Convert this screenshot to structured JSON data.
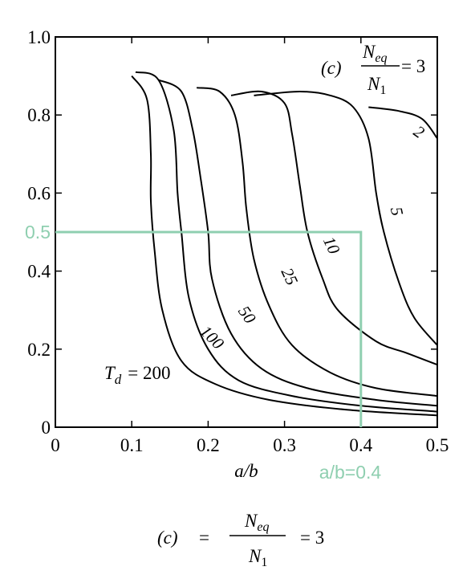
{
  "chart_data": {
    "type": "line",
    "title": "",
    "xlabel": "a/b",
    "ylabel": "",
    "xlim": [
      0,
      0.5
    ],
    "ylim": [
      0,
      1.0
    ],
    "x_ticks": [
      "0",
      "0.1",
      "0.2",
      "0.3",
      "0.4",
      "0.5"
    ],
    "y_ticks": [
      "0",
      "0.2",
      "0.4",
      "0.5",
      "0.6",
      "0.8",
      "1.0"
    ],
    "grid": false,
    "legend": "none",
    "inset_label": {
      "case": "(c)",
      "numerator": "N",
      "numerator_sub": "eq",
      "denominator": "N",
      "denominator_sub": "1",
      "value": "= 3"
    },
    "caption": {
      "case": "(c)",
      "eq1": "=",
      "numerator": "N",
      "numerator_sub": "eq",
      "denominator": "N",
      "denominator_sub": "1",
      "eq2": "= 3"
    },
    "series": [
      {
        "name": "2",
        "label": "2",
        "points": [
          [
            0.41,
            0.82
          ],
          [
            0.45,
            0.81
          ],
          [
            0.48,
            0.79
          ],
          [
            0.5,
            0.74
          ]
        ]
      },
      {
        "name": "5",
        "label": "5",
        "points": [
          [
            0.26,
            0.85
          ],
          [
            0.32,
            0.86
          ],
          [
            0.36,
            0.85
          ],
          [
            0.39,
            0.82
          ],
          [
            0.41,
            0.74
          ],
          [
            0.42,
            0.6
          ],
          [
            0.43,
            0.5
          ],
          [
            0.45,
            0.37
          ],
          [
            0.47,
            0.28
          ],
          [
            0.5,
            0.21
          ]
        ]
      },
      {
        "name": "10",
        "label": "10",
        "points": [
          [
            0.23,
            0.85
          ],
          [
            0.27,
            0.86
          ],
          [
            0.3,
            0.83
          ],
          [
            0.31,
            0.75
          ],
          [
            0.32,
            0.62
          ],
          [
            0.33,
            0.5
          ],
          [
            0.35,
            0.38
          ],
          [
            0.37,
            0.3
          ],
          [
            0.42,
            0.22
          ],
          [
            0.46,
            0.19
          ],
          [
            0.5,
            0.16
          ]
        ]
      },
      {
        "name": "25",
        "label": "25",
        "points": [
          [
            0.185,
            0.87
          ],
          [
            0.215,
            0.86
          ],
          [
            0.235,
            0.8
          ],
          [
            0.245,
            0.68
          ],
          [
            0.25,
            0.56
          ],
          [
            0.26,
            0.43
          ],
          [
            0.28,
            0.31
          ],
          [
            0.31,
            0.21
          ],
          [
            0.36,
            0.14
          ],
          [
            0.42,
            0.1
          ],
          [
            0.5,
            0.08
          ]
        ]
      },
      {
        "name": "50",
        "label": "50",
        "points": [
          [
            0.135,
            0.89
          ],
          [
            0.165,
            0.86
          ],
          [
            0.18,
            0.76
          ],
          [
            0.19,
            0.64
          ],
          [
            0.2,
            0.5
          ],
          [
            0.205,
            0.38
          ],
          [
            0.23,
            0.24
          ],
          [
            0.27,
            0.15
          ],
          [
            0.33,
            0.1
          ],
          [
            0.42,
            0.07
          ],
          [
            0.5,
            0.055
          ]
        ]
      },
      {
        "name": "100",
        "label": "100",
        "points": [
          [
            0.105,
            0.91
          ],
          [
            0.135,
            0.89
          ],
          [
            0.155,
            0.76
          ],
          [
            0.16,
            0.6
          ],
          [
            0.165,
            0.5
          ],
          [
            0.175,
            0.33
          ],
          [
            0.2,
            0.2
          ],
          [
            0.24,
            0.12
          ],
          [
            0.31,
            0.08
          ],
          [
            0.4,
            0.055
          ],
          [
            0.5,
            0.04
          ]
        ]
      },
      {
        "name": "200",
        "label": "T_d = 200",
        "points": [
          [
            0.1,
            0.9
          ],
          [
            0.12,
            0.84
          ],
          [
            0.125,
            0.7
          ],
          [
            0.125,
            0.58
          ],
          [
            0.13,
            0.45
          ],
          [
            0.14,
            0.3
          ],
          [
            0.165,
            0.17
          ],
          [
            0.21,
            0.11
          ],
          [
            0.28,
            0.07
          ],
          [
            0.38,
            0.045
          ],
          [
            0.5,
            0.03
          ]
        ]
      }
    ],
    "curve_labels": [
      {
        "series": "2",
        "text": "2",
        "x": 0.472,
        "y": 0.745
      },
      {
        "series": "5",
        "text": "5",
        "x": 0.44,
        "y": 0.55
      },
      {
        "series": "10",
        "text": "10",
        "x": 0.355,
        "y": 0.46
      },
      {
        "series": "25",
        "text": "25",
        "x": 0.3,
        "y": 0.38
      },
      {
        "series": "50",
        "text": "50",
        "x": 0.245,
        "y": 0.28
      },
      {
        "series": "100",
        "text": "100",
        "x": 0.2,
        "y": 0.22
      }
    ],
    "td_label": {
      "var": "T",
      "sub": "d",
      "text": "= 200"
    },
    "annotation": {
      "y_value": 0.5,
      "x_value": 0.4,
      "y_label": "0.5",
      "x_label": "a/b=0.4",
      "color": "#8fcfb0"
    }
  }
}
